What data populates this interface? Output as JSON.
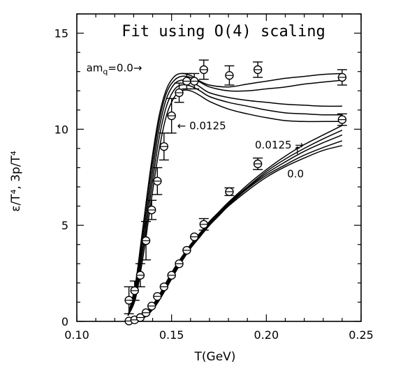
{
  "chart_data": {
    "type": "line",
    "title": "Fit using O(4) scaling",
    "xlabel": "T(GeV)",
    "ylabel": "ε/T⁴, 3p/T⁴",
    "xlim": [
      0.1,
      0.25
    ],
    "ylim": [
      0,
      16
    ],
    "x_ticks": [
      "0.10",
      "0.15",
      "0.20",
      "0.25"
    ],
    "y_ticks": [
      "0",
      "5",
      "10",
      "15"
    ],
    "annotations": [
      {
        "text": "am",
        "sub": "q",
        "rest": "=0.0→",
        "x": 0.105,
        "y": 13.0
      },
      {
        "text": "← 0.0125",
        "x": 0.153,
        "y": 10.0
      },
      {
        "text": "0.0125  →",
        "x": 0.194,
        "y": 9.0
      },
      {
        "text": "↑",
        "x": 0.214,
        "y": 8.7
      },
      {
        "text": "0.0",
        "x": 0.211,
        "y": 7.5
      }
    ],
    "energy_density_points": [
      {
        "x": 0.1275,
        "y": 1.1,
        "err": 0.7
      },
      {
        "x": 0.1305,
        "y": 1.6,
        "err": 0.5
      },
      {
        "x": 0.1335,
        "y": 2.4,
        "err": 0.6
      },
      {
        "x": 0.1365,
        "y": 4.2,
        "err": 1.0
      },
      {
        "x": 0.1395,
        "y": 5.8,
        "err": 0.5
      },
      {
        "x": 0.1425,
        "y": 7.3,
        "err": 0.7
      },
      {
        "x": 0.146,
        "y": 9.1,
        "err": 0.7
      },
      {
        "x": 0.15,
        "y": 10.7,
        "err": 0.9
      },
      {
        "x": 0.154,
        "y": 11.9,
        "err": 0.5
      },
      {
        "x": 0.158,
        "y": 12.5,
        "err": 0.4
      },
      {
        "x": 0.162,
        "y": 12.5,
        "err": 0.4
      },
      {
        "x": 0.167,
        "y": 13.1,
        "err": 0.5
      },
      {
        "x": 0.1805,
        "y": 12.8,
        "err": 0.5
      },
      {
        "x": 0.1955,
        "y": 13.1,
        "err": 0.4
      },
      {
        "x": 0.24,
        "y": 12.7,
        "err": 0.4
      },
      {
        "x": 0.24,
        "y": 10.5,
        "err": 0.3
      }
    ],
    "pressure_points": [
      {
        "x": 0.1275,
        "y": 0.02,
        "err": 0.0
      },
      {
        "x": 0.1305,
        "y": 0.08,
        "err": 0.0
      },
      {
        "x": 0.1335,
        "y": 0.2,
        "err": 0.0
      },
      {
        "x": 0.1365,
        "y": 0.45,
        "err": 0.0
      },
      {
        "x": 0.1395,
        "y": 0.8,
        "err": 0.0
      },
      {
        "x": 0.1425,
        "y": 1.3,
        "err": 0.0
      },
      {
        "x": 0.146,
        "y": 1.8,
        "err": 0.0
      },
      {
        "x": 0.15,
        "y": 2.4,
        "err": 0.0
      },
      {
        "x": 0.154,
        "y": 3.0,
        "err": 0.0
      },
      {
        "x": 0.158,
        "y": 3.7,
        "err": 0.0
      },
      {
        "x": 0.162,
        "y": 4.4,
        "err": 0.0
      },
      {
        "x": 0.167,
        "y": 5.05,
        "err": 0.3
      },
      {
        "x": 0.1805,
        "y": 6.75,
        "err": 0.2
      },
      {
        "x": 0.1955,
        "y": 8.2,
        "err": 0.3
      }
    ],
    "energy_curves": [
      {
        "values": [
          [
            0.127,
            0.3
          ],
          [
            0.131,
            2.0
          ],
          [
            0.135,
            5.0
          ],
          [
            0.139,
            8.0
          ],
          [
            0.143,
            10.5
          ],
          [
            0.147,
            12.0
          ],
          [
            0.151,
            12.7
          ],
          [
            0.155,
            12.9
          ],
          [
            0.16,
            12.8
          ],
          [
            0.165,
            12.5
          ],
          [
            0.17,
            12.3
          ],
          [
            0.18,
            12.2
          ],
          [
            0.19,
            12.35
          ],
          [
            0.2,
            12.5
          ],
          [
            0.21,
            12.65
          ],
          [
            0.22,
            12.75
          ],
          [
            0.23,
            12.85
          ],
          [
            0.24,
            12.9
          ]
        ]
      },
      {
        "values": [
          [
            0.127,
            0.3
          ],
          [
            0.131,
            1.8
          ],
          [
            0.135,
            4.6
          ],
          [
            0.139,
            7.6
          ],
          [
            0.143,
            10.2
          ],
          [
            0.147,
            11.8
          ],
          [
            0.151,
            12.5
          ],
          [
            0.155,
            12.75
          ],
          [
            0.16,
            12.7
          ],
          [
            0.165,
            12.45
          ],
          [
            0.17,
            12.2
          ],
          [
            0.18,
            12.0
          ],
          [
            0.19,
            12.0
          ],
          [
            0.2,
            12.1
          ],
          [
            0.21,
            12.2
          ],
          [
            0.22,
            12.35
          ],
          [
            0.23,
            12.45
          ],
          [
            0.24,
            12.55
          ]
        ]
      },
      {
        "values": [
          [
            0.127,
            0.3
          ],
          [
            0.131,
            1.6
          ],
          [
            0.135,
            4.2
          ],
          [
            0.139,
            7.1
          ],
          [
            0.143,
            9.8
          ],
          [
            0.147,
            11.5
          ],
          [
            0.151,
            12.3
          ],
          [
            0.155,
            12.55
          ],
          [
            0.16,
            12.5
          ],
          [
            0.165,
            12.2
          ],
          [
            0.17,
            11.9
          ],
          [
            0.18,
            11.65
          ],
          [
            0.19,
            11.5
          ],
          [
            0.2,
            11.4
          ],
          [
            0.21,
            11.3
          ],
          [
            0.22,
            11.25
          ],
          [
            0.23,
            11.2
          ],
          [
            0.24,
            11.2
          ]
        ]
      },
      {
        "values": [
          [
            0.127,
            0.3
          ],
          [
            0.131,
            1.4
          ],
          [
            0.135,
            3.8
          ],
          [
            0.139,
            6.6
          ],
          [
            0.143,
            9.3
          ],
          [
            0.147,
            11.1
          ],
          [
            0.151,
            12.0
          ],
          [
            0.155,
            12.3
          ],
          [
            0.16,
            12.25
          ],
          [
            0.165,
            12.0
          ],
          [
            0.17,
            11.7
          ],
          [
            0.18,
            11.4
          ],
          [
            0.19,
            11.2
          ],
          [
            0.2,
            11.0
          ],
          [
            0.21,
            10.85
          ],
          [
            0.22,
            10.8
          ],
          [
            0.23,
            10.75
          ],
          [
            0.24,
            10.75
          ]
        ]
      },
      {
        "values": [
          [
            0.127,
            0.3
          ],
          [
            0.131,
            1.2
          ],
          [
            0.135,
            3.4
          ],
          [
            0.139,
            6.1
          ],
          [
            0.143,
            8.7
          ],
          [
            0.147,
            10.6
          ],
          [
            0.151,
            11.6
          ],
          [
            0.155,
            12.0
          ],
          [
            0.16,
            12.0
          ],
          [
            0.165,
            11.75
          ],
          [
            0.17,
            11.45
          ],
          [
            0.18,
            11.05
          ],
          [
            0.19,
            10.8
          ],
          [
            0.2,
            10.6
          ],
          [
            0.21,
            10.45
          ],
          [
            0.22,
            10.4
          ],
          [
            0.23,
            10.4
          ],
          [
            0.24,
            10.4
          ]
        ]
      }
    ],
    "pressure_curves": [
      {
        "values": [
          [
            0.127,
            0.0
          ],
          [
            0.131,
            0.05
          ],
          [
            0.135,
            0.25
          ],
          [
            0.139,
            0.7
          ],
          [
            0.143,
            1.3
          ],
          [
            0.147,
            2.0
          ],
          [
            0.151,
            2.7
          ],
          [
            0.155,
            3.3
          ],
          [
            0.16,
            4.0
          ],
          [
            0.165,
            4.6
          ],
          [
            0.17,
            5.2
          ],
          [
            0.175,
            5.7
          ],
          [
            0.18,
            6.2
          ],
          [
            0.19,
            7.1
          ],
          [
            0.2,
            7.9
          ],
          [
            0.21,
            8.6
          ],
          [
            0.22,
            9.2
          ],
          [
            0.23,
            9.7
          ],
          [
            0.24,
            10.2
          ]
        ]
      },
      {
        "values": [
          [
            0.127,
            0.0
          ],
          [
            0.131,
            0.05
          ],
          [
            0.135,
            0.22
          ],
          [
            0.139,
            0.65
          ],
          [
            0.143,
            1.22
          ],
          [
            0.147,
            1.9
          ],
          [
            0.151,
            2.6
          ],
          [
            0.155,
            3.25
          ],
          [
            0.16,
            3.95
          ],
          [
            0.165,
            4.55
          ],
          [
            0.17,
            5.15
          ],
          [
            0.175,
            5.65
          ],
          [
            0.18,
            6.15
          ],
          [
            0.19,
            7.0
          ],
          [
            0.2,
            7.8
          ],
          [
            0.21,
            8.45
          ],
          [
            0.22,
            9.0
          ],
          [
            0.23,
            9.5
          ],
          [
            0.24,
            9.95
          ]
        ]
      },
      {
        "values": [
          [
            0.127,
            0.0
          ],
          [
            0.131,
            0.04
          ],
          [
            0.135,
            0.2
          ],
          [
            0.139,
            0.6
          ],
          [
            0.143,
            1.15
          ],
          [
            0.147,
            1.82
          ],
          [
            0.151,
            2.52
          ],
          [
            0.155,
            3.2
          ],
          [
            0.16,
            3.9
          ],
          [
            0.165,
            4.5
          ],
          [
            0.17,
            5.1
          ],
          [
            0.175,
            5.6
          ],
          [
            0.18,
            6.1
          ],
          [
            0.19,
            6.95
          ],
          [
            0.2,
            7.7
          ],
          [
            0.21,
            8.3
          ],
          [
            0.22,
            8.85
          ],
          [
            0.23,
            9.3
          ],
          [
            0.24,
            9.7
          ]
        ]
      },
      {
        "values": [
          [
            0.127,
            0.0
          ],
          [
            0.131,
            0.04
          ],
          [
            0.135,
            0.18
          ],
          [
            0.139,
            0.55
          ],
          [
            0.143,
            1.08
          ],
          [
            0.147,
            1.75
          ],
          [
            0.151,
            2.45
          ],
          [
            0.155,
            3.12
          ],
          [
            0.16,
            3.85
          ],
          [
            0.165,
            4.45
          ],
          [
            0.17,
            5.05
          ],
          [
            0.175,
            5.55
          ],
          [
            0.18,
            6.05
          ],
          [
            0.19,
            6.9
          ],
          [
            0.2,
            7.6
          ],
          [
            0.21,
            8.15
          ],
          [
            0.22,
            8.65
          ],
          [
            0.23,
            9.05
          ],
          [
            0.24,
            9.4
          ]
        ]
      },
      {
        "values": [
          [
            0.127,
            0.0
          ],
          [
            0.131,
            0.03
          ],
          [
            0.135,
            0.16
          ],
          [
            0.139,
            0.5
          ],
          [
            0.143,
            1.02
          ],
          [
            0.147,
            1.68
          ],
          [
            0.151,
            2.38
          ],
          [
            0.155,
            3.05
          ],
          [
            0.16,
            3.8
          ],
          [
            0.165,
            4.4
          ],
          [
            0.17,
            5.0
          ],
          [
            0.175,
            5.5
          ],
          [
            0.18,
            6.0
          ],
          [
            0.19,
            6.8
          ],
          [
            0.2,
            7.5
          ],
          [
            0.21,
            8.05
          ],
          [
            0.22,
            8.5
          ],
          [
            0.23,
            8.9
          ],
          [
            0.24,
            9.15
          ]
        ]
      }
    ]
  }
}
